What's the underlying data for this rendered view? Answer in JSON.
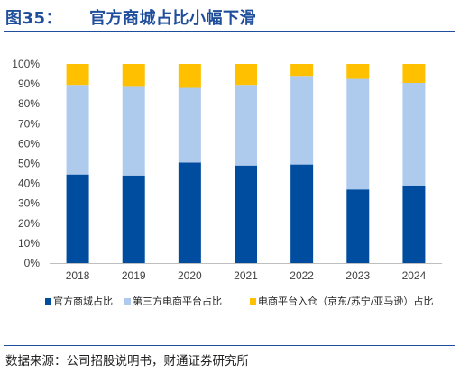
{
  "header": {
    "figure_no": "图35：",
    "title": "官方商城占比小幅下滑"
  },
  "chart_data": {
    "type": "bar",
    "stacked": true,
    "normalized": true,
    "categories": [
      "2018",
      "2019",
      "2020",
      "2021",
      "2022",
      "2023",
      "2024"
    ],
    "series": [
      {
        "name": "官方商城占比",
        "color": "#004da0",
        "values": [
          44.5,
          44.0,
          50.5,
          49.0,
          49.5,
          37.0,
          39.0
        ]
      },
      {
        "name": "第三方电商平台占比",
        "color": "#aecbee",
        "values": [
          45.0,
          44.5,
          37.5,
          40.5,
          44.5,
          55.5,
          51.5
        ]
      },
      {
        "name": "电商平台入仓（京东/苏宁/亚马逊）占比",
        "color": "#ffc000",
        "values": [
          10.5,
          11.5,
          12.0,
          10.5,
          6.0,
          7.5,
          9.5
        ]
      }
    ],
    "yticks": [
      "0%",
      "10%",
      "20%",
      "30%",
      "40%",
      "50%",
      "60%",
      "70%",
      "80%",
      "90%",
      "100%"
    ],
    "ylim": [
      0,
      100
    ],
    "grid": false,
    "legend_position": "bottom"
  },
  "footer": {
    "source": "数据来源：公司招股说明书，财通证券研究所"
  }
}
